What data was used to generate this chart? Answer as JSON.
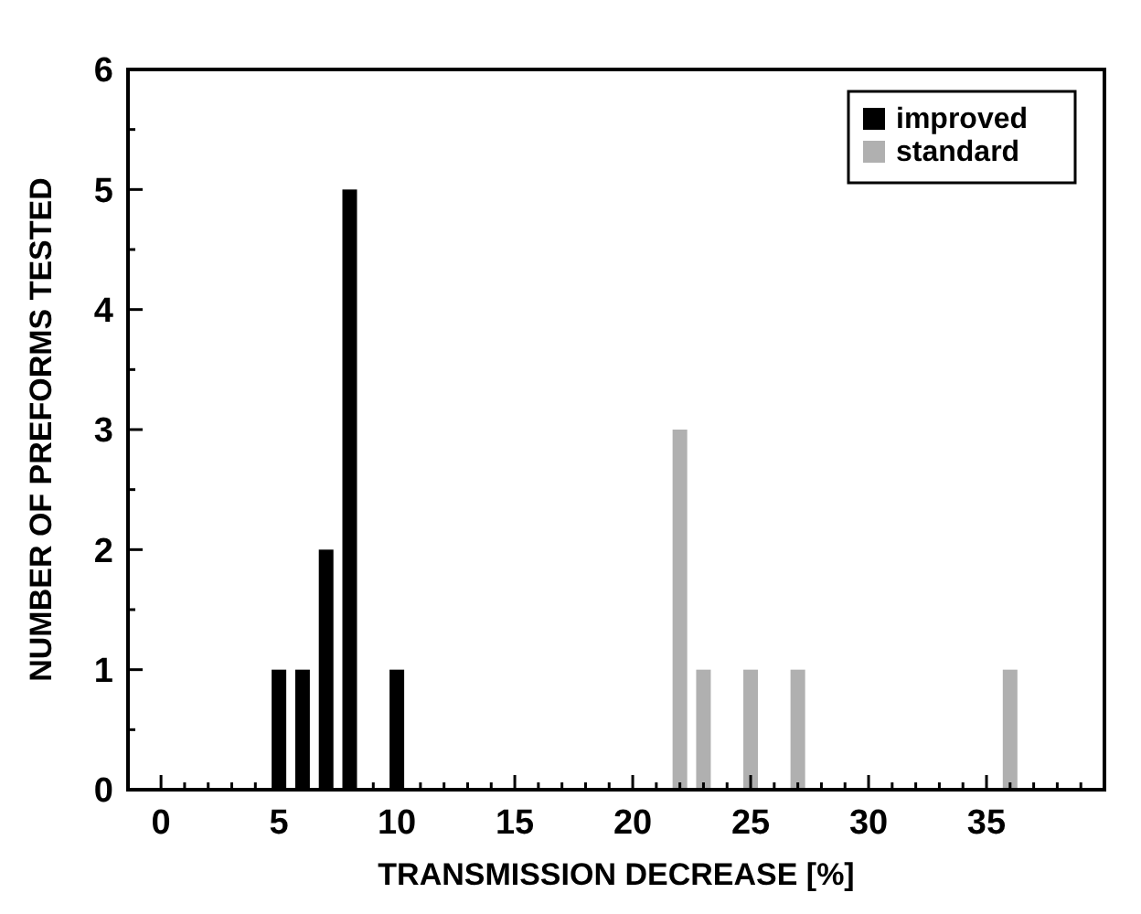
{
  "chart_data": {
    "type": "bar",
    "xlabel": "TRANSMISSION DECREASE [%]",
    "ylabel": "NUMBER OF PREFORMS TESTED",
    "series": [
      {
        "name": "improved",
        "color": "#000000",
        "x": [
          5,
          6,
          7,
          8,
          10
        ],
        "values": [
          1,
          1,
          2,
          5,
          1
        ]
      },
      {
        "name": "standard",
        "color": "#b0b0b0",
        "x": [
          22,
          23,
          25,
          27,
          36
        ],
        "values": [
          3,
          1,
          1,
          1,
          1
        ]
      }
    ],
    "xlim": [
      -1.4,
      40
    ],
    "xticks": [
      0,
      {
        "value": 1,
        "label": null
      },
      {
        "value": 2,
        "label": null
      },
      {
        "value": 3,
        "label": null
      },
      {
        "value": 4,
        "label": null
      },
      5,
      {
        "value": 6,
        "label": null
      },
      {
        "value": 7,
        "label": null
      },
      {
        "value": 8,
        "label": null
      },
      {
        "value": 9,
        "label": null
      },
      10,
      {
        "value": 11,
        "label": null
      },
      {
        "value": 12,
        "label": null
      },
      {
        "value": 13,
        "label": null
      },
      {
        "value": 14,
        "label": null
      },
      15,
      {
        "value": 16,
        "label": null
      },
      {
        "value": 17,
        "label": null
      },
      {
        "value": 18,
        "label": null
      },
      {
        "value": 19,
        "label": null
      },
      20,
      {
        "value": 21,
        "label": null
      },
      {
        "value": 22,
        "label": null
      },
      {
        "value": 23,
        "label": null
      },
      {
        "value": 24,
        "label": null
      },
      25,
      {
        "value": 26,
        "label": null
      },
      {
        "value": 27,
        "label": null
      },
      {
        "value": 28,
        "label": null
      },
      {
        "value": 29,
        "label": null
      },
      30,
      {
        "value": 31,
        "label": null
      },
      {
        "value": 32,
        "label": null
      },
      {
        "value": 33,
        "label": null
      },
      {
        "value": 34,
        "label": null
      },
      35,
      {
        "value": 36,
        "label": null
      },
      {
        "value": 37,
        "label": null
      },
      {
        "value": 38,
        "label": null
      },
      {
        "value": 39,
        "label": null
      }
    ],
    "ylim": [
      0,
      6
    ],
    "yticks": [
      0,
      {
        "value": 0.5,
        "label": null
      },
      1,
      {
        "value": 1.5,
        "label": null
      },
      2,
      {
        "value": 2.5,
        "label": null
      },
      3,
      {
        "value": 3.5,
        "label": null
      },
      4,
      {
        "value": 4.5,
        "label": null
      },
      5,
      {
        "value": 5.5,
        "label": null
      },
      6
    ],
    "legend": "top right",
    "grid": false
  }
}
